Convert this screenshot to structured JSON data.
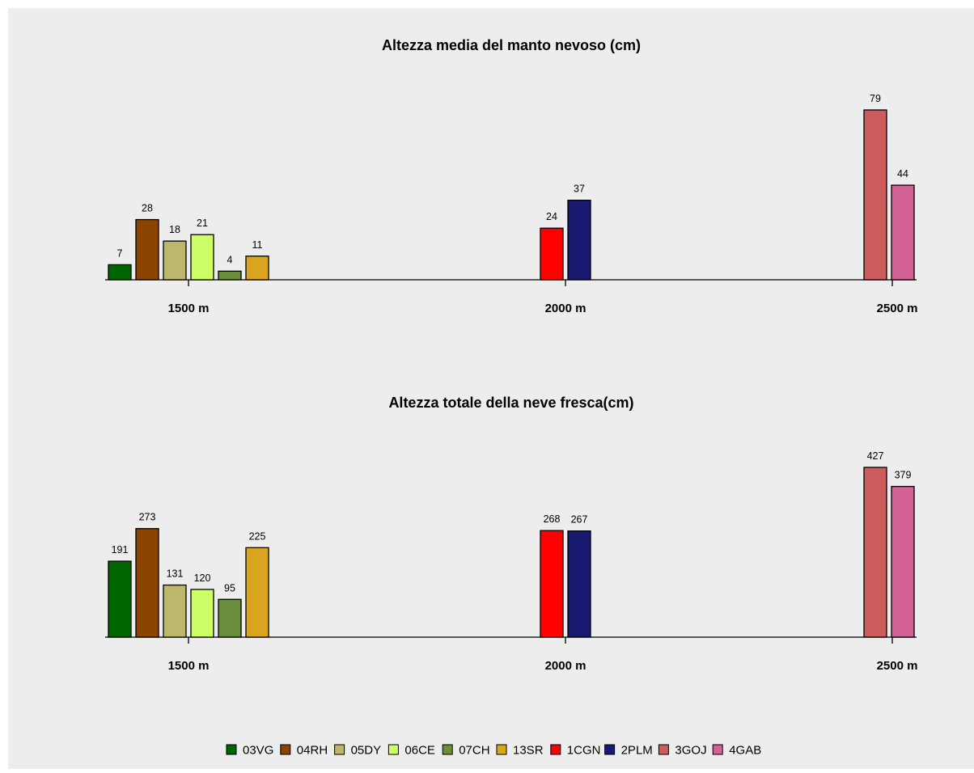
{
  "series_colors": {
    "03VG": "#006400",
    "04RH": "#8B4500",
    "05DY": "#BDB76B",
    "06CE": "#CCFF66",
    "07CH": "#6B8E3D",
    "13SR": "#DAA520",
    "1CGN": "#FF0000",
    "2PLM": "#191970",
    "3GOJ": "#CD5C5C",
    "4GAB": "#D26296"
  },
  "legend": {
    "entries": [
      "03VG",
      "04RH",
      "05DY",
      "06CE",
      "07CH",
      "13SR",
      "1CGN",
      "2PLM",
      "3GOJ",
      "4GAB"
    ]
  },
  "chart_data": [
    {
      "type": "bar",
      "title": "Altezza media del manto nevoso (cm)",
      "categories": [
        "1500 m",
        "2000 m",
        "2500 m"
      ],
      "groups": [
        {
          "category": "1500 m",
          "stations": [
            "03VG",
            "04RH",
            "05DY",
            "06CE",
            "07CH",
            "13SR"
          ],
          "values": [
            7,
            28,
            18,
            21,
            4,
            11
          ]
        },
        {
          "category": "2000 m",
          "stations": [
            "1CGN",
            "2PLM"
          ],
          "values": [
            24,
            37
          ]
        },
        {
          "category": "2500 m",
          "stations": [
            "3GOJ",
            "4GAB"
          ],
          "values": [
            79,
            44
          ]
        }
      ],
      "ylim": [
        0,
        79
      ],
      "grid": false,
      "legend_position": "bottom"
    },
    {
      "type": "bar",
      "title": "Altezza totale della neve fresca(cm)",
      "categories": [
        "1500 m",
        "2000 m",
        "2500 m"
      ],
      "groups": [
        {
          "category": "1500 m",
          "stations": [
            "03VG",
            "04RH",
            "05DY",
            "06CE",
            "07CH",
            "13SR"
          ],
          "values": [
            191,
            273,
            131,
            120,
            95,
            225
          ]
        },
        {
          "category": "2000 m",
          "stations": [
            "1CGN",
            "2PLM"
          ],
          "values": [
            268,
            267
          ]
        },
        {
          "category": "2500 m",
          "stations": [
            "3GOJ",
            "4GAB"
          ],
          "values": [
            427,
            379
          ]
        }
      ],
      "ylim": [
        0,
        427
      ],
      "grid": false,
      "legend_position": "bottom"
    }
  ]
}
